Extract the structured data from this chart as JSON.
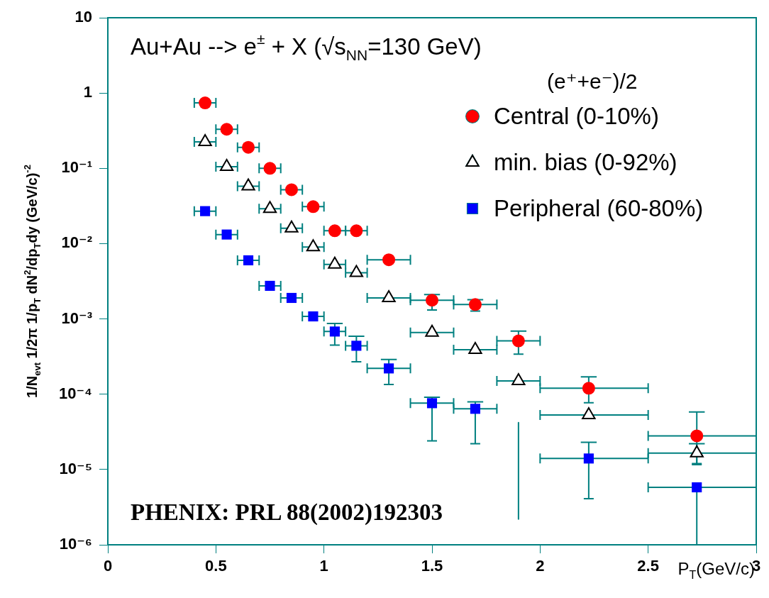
{
  "chart_data": {
    "type": "scatter",
    "title": "Au+Au --> e$^{±}$ + X (√s$_{NN}$=130 GeV)",
    "xlabel": "P$_{T}$(GeV/c)",
    "ylabel": "1/N$_{evt}$ 1/2π 1/p$_{T}$ dN$^{2}$/dp$_{T}$dy (GeV/c)$^{-2}$",
    "legend_title": "(e⁺+e⁻)/2",
    "legend": "top right",
    "log": "y",
    "x": [
      0.45,
      0.55,
      0.65,
      0.75,
      0.85,
      0.95,
      1.05,
      1.15,
      1.3,
      1.5,
      1.7,
      1.9,
      2.225,
      2.725
    ],
    "series": [
      {
        "name": "Central (0-10%)",
        "color": "#ff0000",
        "marker": "circle",
        "values": [
          0.74,
          0.33,
          0.19,
          0.1,
          0.052,
          0.031,
          0.0148,
          0.0148,
          0.0061,
          0.00177,
          0.00155,
          0.00051,
          0.00012,
          2.8e-05
        ],
        "errors": [
          null,
          null,
          null,
          null,
          null,
          null,
          null,
          null,
          null,
          [
            0.00131,
            0.0021
          ],
          [
            0.00127,
            0.0018
          ],
          [
            0.00034,
            0.00069
          ],
          [
            7.7e-05,
            0.00017
          ],
          [
            1.2e-05,
            5.8e-05
          ]
        ],
        "xerrors": [
          [
            0.4,
            0.5
          ],
          [
            0.5,
            0.6
          ],
          [
            0.6,
            0.7
          ],
          [
            0.7,
            0.8
          ],
          [
            0.8,
            0.9
          ],
          [
            0.9,
            1.0
          ],
          [
            1.0,
            1.1
          ],
          [
            1.1,
            1.2
          ],
          [
            1.2,
            1.4
          ],
          [
            1.4,
            1.6
          ],
          [
            1.6,
            1.8
          ],
          [
            1.8,
            2.0
          ],
          [
            2.0,
            2.5
          ],
          [
            2.5,
            3.0
          ]
        ]
      },
      {
        "name": "min. bias (0-92%)",
        "color": "#000000",
        "marker": "triangle",
        "values": [
          0.225,
          0.105,
          0.058,
          0.029,
          0.016,
          0.009,
          0.0053,
          0.0041,
          0.0019,
          0.00066,
          0.00039,
          0.00015,
          5.3e-05,
          1.65e-05
        ],
        "errors": [
          null,
          null,
          null,
          null,
          null,
          null,
          null,
          null,
          null,
          null,
          null,
          null,
          null,
          [
            1.16e-05,
            2.2e-05
          ]
        ],
        "xerrors": [
          [
            0.4,
            0.5
          ],
          [
            0.5,
            0.6
          ],
          [
            0.6,
            0.7
          ],
          [
            0.7,
            0.8
          ],
          [
            0.8,
            0.9
          ],
          [
            0.9,
            1.0
          ],
          [
            1.0,
            1.1
          ],
          [
            1.1,
            1.2
          ],
          [
            1.2,
            1.4
          ],
          [
            1.4,
            1.6
          ],
          [
            1.6,
            1.8
          ],
          [
            1.8,
            2.0
          ],
          [
            2.0,
            2.5
          ],
          [
            2.5,
            3.0
          ]
        ]
      },
      {
        "name": "Peripheral (60-80%)",
        "color": "#0000ff",
        "marker": "square",
        "values": [
          0.027,
          0.0132,
          0.006,
          0.00275,
          0.0019,
          0.00108,
          0.00068,
          0.00044,
          0.00022,
          7.6e-05,
          6.4e-05,
          null,
          1.4e-05,
          5.8e-06
        ],
        "errors": [
          null,
          null,
          null,
          null,
          null,
          null,
          [
            0.00045,
            0.00087
          ],
          [
            0.00027,
            0.00059
          ],
          [
            0.000135,
            0.00029
          ],
          [
            2.4e-05,
            9.1e-05
          ],
          [
            2.2e-05,
            7.9e-05
          ],
          null,
          [
            4.1e-06,
            2.3e-05
          ],
          [
            1e-06,
            5.8e-06
          ]
        ],
        "xerrors": [
          [
            0.4,
            0.5
          ],
          [
            0.5,
            0.6
          ],
          [
            0.6,
            0.7
          ],
          [
            0.7,
            0.8
          ],
          [
            0.8,
            0.9
          ],
          [
            0.9,
            1.0
          ],
          [
            1.0,
            1.1
          ],
          [
            1.1,
            1.2
          ],
          [
            1.2,
            1.4
          ],
          [
            1.4,
            1.6
          ],
          [
            1.6,
            1.8
          ],
          null,
          [
            2.0,
            2.5
          ],
          [
            2.5,
            3.0
          ]
        ]
      },
      {
        "type": "line",
        "color": "#008080",
        "marker": "none",
        "x": [
          1.9,
          1.9
        ],
        "values": [
          4.2e-05,
          2.2e-06
        ]
      }
    ],
    "xlim": [
      0,
      3
    ],
    "xticks": [
      0,
      0.5,
      1,
      1.5,
      2,
      2.5,
      3
    ],
    "ylim": [
      1e-06,
      10
    ],
    "yticks": [
      {
        "value": 1e-06,
        "label": "10⁻⁶"
      },
      {
        "value": 1e-05,
        "label": "10⁻⁵"
      },
      {
        "value": 0.0001,
        "label": "10⁻⁴"
      },
      {
        "value": 0.001,
        "label": "10⁻³"
      },
      {
        "value": 0.01,
        "label": "10⁻²"
      },
      {
        "value": 0.1,
        "label": "10⁻¹"
      },
      1,
      10
    ],
    "annotations": [
      "PHENIX: PRL 88(2002)192303"
    ]
  }
}
